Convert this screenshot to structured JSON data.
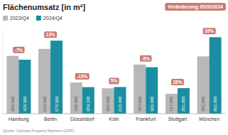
{
  "chart_data": {
    "type": "bar",
    "title": "Flächenumsatz [in m²]",
    "categories": [
      "Hamburg",
      "Berlin",
      "Düsseldorf",
      "Köln",
      "Frankfurt",
      "Stuttgart",
      "München"
    ],
    "series": [
      {
        "name": "2023/Q4",
        "color": "#b8b8b8",
        "values": [
          455000,
          510000,
          245900,
          200000,
          387000,
          157000,
          451000
        ],
        "value_labels": [
          "455.000",
          "510.000",
          "245.900",
          "200.000",
          "387.000",
          "157.000",
          "451.000"
        ]
      },
      {
        "name": "2024/Q4",
        "color": "#1a8ea0",
        "values": [
          425000,
          575000,
          209100,
          210000,
          366000,
          201000,
          602000
        ],
        "value_labels": [
          "425.000",
          "575.000",
          "209.100",
          "210.000",
          "366.000",
          "201.000",
          "602.000"
        ]
      }
    ],
    "annotations": {
      "name": "Veränderung 2023/2024",
      "color": "#c97b72",
      "labels": [
        "-7%",
        "13%",
        "-15%",
        "5%",
        "-5%",
        "28%",
        "33%"
      ]
    },
    "source": "Quelle: German Property Partners (GPP)",
    "ylim": [
      0,
      660000
    ],
    "data_labels": true,
    "tick_labels": "x",
    "grid": false,
    "legend": "top"
  }
}
